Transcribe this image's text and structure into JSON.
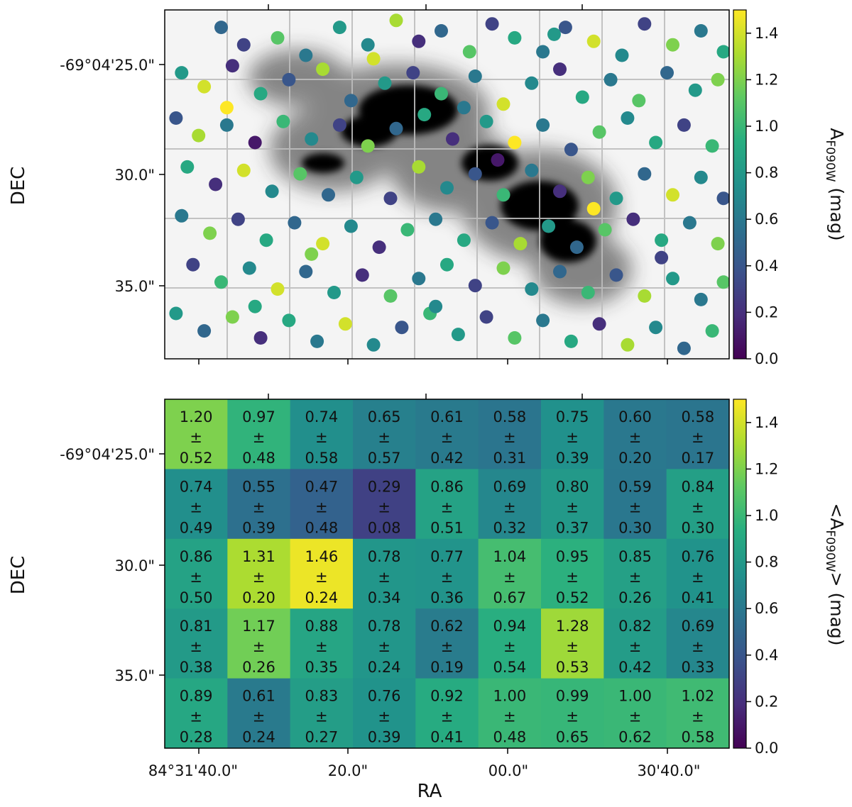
{
  "chart_data": [
    {
      "type": "scatter",
      "panel": "top",
      "description_kind": "sources over grayscale nebula image, colored by extinction",
      "xlabel": "",
      "ylabel": "DEC",
      "x_tick_labels": [],
      "y_tick_labels": [
        "-69°04'25.0\"",
        "30.0\"",
        "35.0\""
      ],
      "colorbar": {
        "label_main": "A",
        "label_sub": "F090W",
        "label_tail": " (mag)",
        "range": [
          0.0,
          1.5
        ],
        "ticks": [
          "0.0",
          "0.2",
          "0.4",
          "0.6",
          "0.8",
          "1.0",
          "1.2",
          "1.4"
        ]
      },
      "grid": true,
      "note": "point positions expressed as fractions of plot area (col, row), values are extinction in mag",
      "points": [
        [
          0.1,
          0.05,
          0.5
        ],
        [
          0.14,
          0.1,
          0.3
        ],
        [
          0.2,
          0.08,
          1.1
        ],
        [
          0.25,
          0.13,
          0.6
        ],
        [
          0.31,
          0.05,
          0.8
        ],
        [
          0.36,
          0.1,
          0.7
        ],
        [
          0.41,
          0.03,
          1.3
        ],
        [
          0.45,
          0.09,
          0.2
        ],
        [
          0.49,
          0.06,
          0.5
        ],
        [
          0.54,
          0.12,
          1.1
        ],
        [
          0.58,
          0.04,
          0.3
        ],
        [
          0.62,
          0.08,
          0.9
        ],
        [
          0.67,
          0.12,
          0.6
        ],
        [
          0.71,
          0.05,
          0.4
        ],
        [
          0.76,
          0.09,
          1.4
        ],
        [
          0.81,
          0.13,
          0.7
        ],
        [
          0.85,
          0.04,
          0.3
        ],
        [
          0.9,
          0.1,
          1.2
        ],
        [
          0.95,
          0.06,
          0.6
        ],
        [
          0.99,
          0.12,
          0.9
        ],
        [
          0.03,
          0.18,
          0.8
        ],
        [
          0.07,
          0.22,
          1.4
        ],
        [
          0.12,
          0.16,
          0.2
        ],
        [
          0.17,
          0.24,
          0.9
        ],
        [
          0.22,
          0.2,
          0.4
        ],
        [
          0.28,
          0.17,
          1.3
        ],
        [
          0.33,
          0.26,
          0.5
        ],
        [
          0.39,
          0.21,
          0.8
        ],
        [
          0.44,
          0.18,
          0.3
        ],
        [
          0.49,
          0.24,
          1.0
        ],
        [
          0.55,
          0.19,
          0.6
        ],
        [
          0.6,
          0.27,
          1.4
        ],
        [
          0.65,
          0.21,
          0.7
        ],
        [
          0.7,
          0.17,
          0.2
        ],
        [
          0.74,
          0.25,
          0.9
        ],
        [
          0.79,
          0.2,
          0.6
        ],
        [
          0.84,
          0.26,
          1.1
        ],
        [
          0.89,
          0.18,
          0.5
        ],
        [
          0.94,
          0.23,
          0.8
        ],
        [
          0.98,
          0.2,
          1.2
        ],
        [
          0.02,
          0.31,
          0.4
        ],
        [
          0.06,
          0.36,
          1.3
        ],
        [
          0.11,
          0.33,
          0.6
        ],
        [
          0.16,
          0.38,
          0.1
        ],
        [
          0.21,
          0.32,
          1.0
        ],
        [
          0.26,
          0.37,
          0.7
        ],
        [
          0.31,
          0.33,
          0.3
        ],
        [
          0.36,
          0.39,
          1.2
        ],
        [
          0.41,
          0.34,
          0.5
        ],
        [
          0.46,
          0.3,
          0.9
        ],
        [
          0.51,
          0.37,
          0.2
        ],
        [
          0.57,
          0.32,
          0.8
        ],
        [
          0.62,
          0.38,
          1.5
        ],
        [
          0.67,
          0.33,
          0.6
        ],
        [
          0.72,
          0.4,
          0.4
        ],
        [
          0.77,
          0.35,
          1.1
        ],
        [
          0.82,
          0.31,
          0.7
        ],
        [
          0.87,
          0.38,
          0.9
        ],
        [
          0.92,
          0.33,
          0.3
        ],
        [
          0.97,
          0.39,
          1.0
        ],
        [
          0.04,
          0.45,
          0.9
        ],
        [
          0.09,
          0.5,
          0.2
        ],
        [
          0.14,
          0.46,
          1.4
        ],
        [
          0.19,
          0.52,
          0.7
        ],
        [
          0.24,
          0.47,
          1.1
        ],
        [
          0.29,
          0.53,
          0.5
        ],
        [
          0.34,
          0.48,
          0.8
        ],
        [
          0.4,
          0.54,
          0.3
        ],
        [
          0.45,
          0.45,
          1.3
        ],
        [
          0.5,
          0.51,
          0.7
        ],
        [
          0.55,
          0.47,
          0.4
        ],
        [
          0.6,
          0.53,
          1.0
        ],
        [
          0.65,
          0.46,
          0.6
        ],
        [
          0.7,
          0.52,
          0.2
        ],
        [
          0.75,
          0.48,
          1.2
        ],
        [
          0.8,
          0.54,
          0.8
        ],
        [
          0.85,
          0.47,
          0.5
        ],
        [
          0.9,
          0.53,
          1.4
        ],
        [
          0.95,
          0.48,
          0.7
        ],
        [
          0.99,
          0.54,
          0.4
        ],
        [
          0.03,
          0.59,
          0.6
        ],
        [
          0.08,
          0.64,
          1.2
        ],
        [
          0.13,
          0.6,
          0.3
        ],
        [
          0.18,
          0.66,
          0.9
        ],
        [
          0.23,
          0.61,
          0.5
        ],
        [
          0.28,
          0.67,
          1.4
        ],
        [
          0.33,
          0.62,
          0.7
        ],
        [
          0.38,
          0.68,
          0.2
        ],
        [
          0.43,
          0.63,
          1.0
        ],
        [
          0.48,
          0.6,
          0.6
        ],
        [
          0.53,
          0.66,
          0.9
        ],
        [
          0.58,
          0.61,
          0.4
        ],
        [
          0.63,
          0.67,
          1.3
        ],
        [
          0.68,
          0.62,
          0.8
        ],
        [
          0.73,
          0.68,
          0.5
        ],
        [
          0.78,
          0.63,
          1.1
        ],
        [
          0.83,
          0.6,
          0.2
        ],
        [
          0.88,
          0.66,
          0.9
        ],
        [
          0.93,
          0.61,
          0.6
        ],
        [
          0.98,
          0.67,
          1.2
        ],
        [
          0.05,
          0.73,
          0.3
        ],
        [
          0.1,
          0.78,
          1.0
        ],
        [
          0.15,
          0.74,
          0.7
        ],
        [
          0.2,
          0.8,
          1.4
        ],
        [
          0.25,
          0.75,
          0.5
        ],
        [
          0.3,
          0.81,
          0.8
        ],
        [
          0.35,
          0.76,
          0.2
        ],
        [
          0.4,
          0.82,
          1.1
        ],
        [
          0.45,
          0.77,
          0.6
        ],
        [
          0.5,
          0.73,
          0.9
        ],
        [
          0.55,
          0.79,
          0.3
        ],
        [
          0.6,
          0.74,
          1.2
        ],
        [
          0.65,
          0.8,
          0.7
        ],
        [
          0.7,
          0.75,
          0.5
        ],
        [
          0.75,
          0.81,
          1.0
        ],
        [
          0.8,
          0.76,
          0.4
        ],
        [
          0.85,
          0.82,
          1.3
        ],
        [
          0.9,
          0.77,
          0.8
        ],
        [
          0.95,
          0.83,
          0.6
        ],
        [
          0.99,
          0.78,
          1.1
        ],
        [
          0.02,
          0.87,
          0.8
        ],
        [
          0.07,
          0.92,
          0.5
        ],
        [
          0.12,
          0.88,
          1.2
        ],
        [
          0.17,
          0.94,
          0.2
        ],
        [
          0.22,
          0.89,
          0.9
        ],
        [
          0.27,
          0.95,
          0.6
        ],
        [
          0.32,
          0.9,
          1.4
        ],
        [
          0.37,
          0.96,
          0.7
        ],
        [
          0.42,
          0.91,
          0.4
        ],
        [
          0.47,
          0.87,
          1.0
        ],
        [
          0.52,
          0.93,
          0.8
        ],
        [
          0.57,
          0.88,
          0.3
        ],
        [
          0.62,
          0.94,
          1.1
        ],
        [
          0.67,
          0.89,
          0.6
        ],
        [
          0.72,
          0.95,
          0.9
        ],
        [
          0.77,
          0.9,
          0.2
        ],
        [
          0.82,
          0.96,
          1.3
        ],
        [
          0.87,
          0.91,
          0.7
        ],
        [
          0.92,
          0.97,
          0.5
        ],
        [
          0.97,
          0.92,
          1.0
        ],
        [
          0.11,
          0.28,
          1.5
        ],
        [
          0.37,
          0.14,
          1.4
        ],
        [
          0.59,
          0.43,
          0.1
        ],
        [
          0.76,
          0.57,
          1.5
        ],
        [
          0.26,
          0.7,
          1.2
        ],
        [
          0.48,
          0.85,
          0.7
        ],
        [
          0.69,
          0.07,
          0.8
        ],
        [
          0.88,
          0.71,
          0.3
        ],
        [
          0.16,
          0.85,
          0.9
        ],
        [
          0.53,
          0.28,
          0.6
        ]
      ]
    },
    {
      "type": "heatmap",
      "panel": "bottom",
      "xlabel": "RA",
      "ylabel": "DEC",
      "x_tick_labels": [
        "84°31'40.0\"",
        "20.0\"",
        "00.0\"",
        "30'40.0\""
      ],
      "y_tick_labels": [
        "-69°04'25.0\"",
        "30.0\"",
        "35.0\""
      ],
      "colorbar": {
        "label_main": "<A",
        "label_sub": "F090W",
        "label_tail": "> (mag)",
        "range": [
          0.0,
          1.5
        ],
        "ticks": [
          "0.0",
          "0.2",
          "0.4",
          "0.6",
          "0.8",
          "1.0",
          "1.2",
          "1.4"
        ]
      },
      "pm_symbol": "±",
      "rows": [
        {
          "values": [
            "1.20",
            "0.97",
            "0.74",
            "0.65",
            "0.61",
            "0.58",
            "0.75",
            "0.60",
            "0.58"
          ],
          "errors": [
            "0.52",
            "0.48",
            "0.58",
            "0.57",
            "0.42",
            "0.31",
            "0.39",
            "0.20",
            "0.17"
          ]
        },
        {
          "values": [
            "0.74",
            "0.55",
            "0.47",
            "0.29",
            "0.86",
            "0.69",
            "0.80",
            "0.59",
            "0.84"
          ],
          "errors": [
            "0.49",
            "0.39",
            "0.48",
            "0.08",
            "0.51",
            "0.32",
            "0.37",
            "0.30",
            "0.30"
          ]
        },
        {
          "values": [
            "0.86",
            "1.31",
            "1.46",
            "0.78",
            "0.77",
            "1.04",
            "0.95",
            "0.85",
            "0.76"
          ],
          "errors": [
            "0.50",
            "0.20",
            "0.24",
            "0.34",
            "0.36",
            "0.67",
            "0.52",
            "0.26",
            "0.41"
          ]
        },
        {
          "values": [
            "0.81",
            "1.17",
            "0.88",
            "0.78",
            "0.62",
            "0.94",
            "1.28",
            "0.82",
            "0.69"
          ],
          "errors": [
            "0.38",
            "0.26",
            "0.35",
            "0.24",
            "0.19",
            "0.54",
            "0.53",
            "0.42",
            "0.33"
          ]
        },
        {
          "values": [
            "0.89",
            "0.61",
            "0.83",
            "0.76",
            "0.92",
            "1.00",
            "0.99",
            "1.00",
            "1.02"
          ],
          "errors": [
            "0.28",
            "0.24",
            "0.27",
            "0.39",
            "0.41",
            "0.48",
            "0.65",
            "0.62",
            "0.58"
          ]
        }
      ]
    }
  ]
}
